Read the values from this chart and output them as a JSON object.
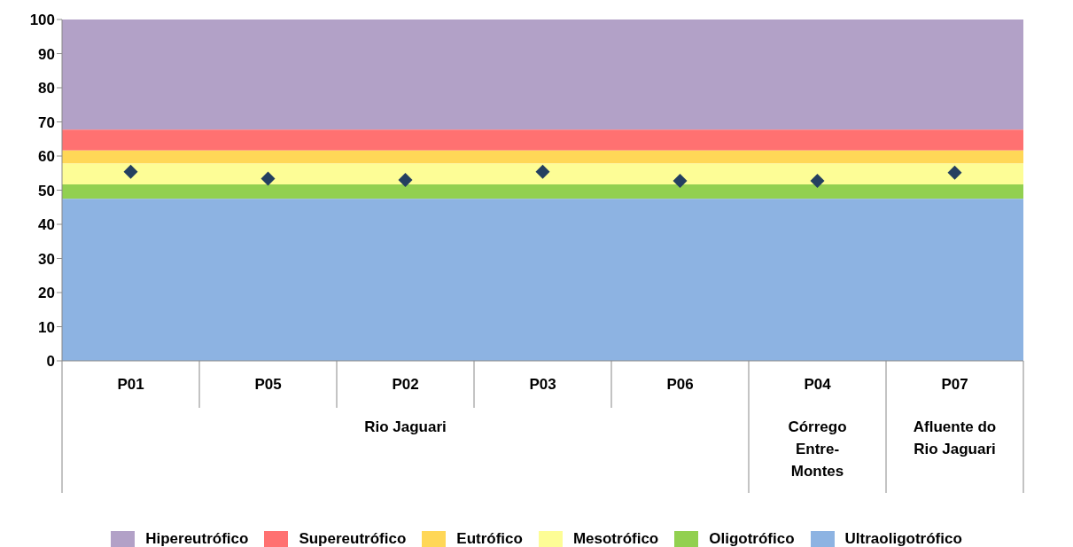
{
  "chart_data": {
    "type": "scatter",
    "categories": [
      "P01",
      "P05",
      "P02",
      "P03",
      "P06",
      "P04",
      "P07"
    ],
    "series": [
      {
        "color": "#243f60",
        "values": [
          55.4,
          53.4,
          53.0,
          55.4,
          52.7,
          52.7,
          55.1
        ]
      }
    ],
    "marker": "diamond",
    "ylim": [
      0,
      100
    ],
    "yticks": [
      0,
      10,
      20,
      30,
      40,
      50,
      60,
      70,
      80,
      90,
      100
    ],
    "legend": "bottom",
    "bands": [
      {
        "axis": "y",
        "from": 67.7,
        "to": 100,
        "label": "Hipereutrófico",
        "color": "#b2a1c7"
      },
      {
        "axis": "y",
        "from": 61.6,
        "to": 67.7,
        "label": "Supereutrófico",
        "color": "#ff7171"
      },
      {
        "axis": "y",
        "from": 57.8,
        "to": 61.6,
        "label": "Eutrófico",
        "color": "#ffd757"
      },
      {
        "axis": "y",
        "from": 51.7,
        "to": 57.8,
        "label": "Mesotrófico",
        "color": "#fdfd96"
      },
      {
        "axis": "y",
        "from": 47.5,
        "to": 51.7,
        "label": "Oligotrófico",
        "color": "#92d050"
      },
      {
        "axis": "y",
        "from": 0,
        "to": 47.5,
        "label": "Ultraoligotrófico",
        "color": "#8db3e2"
      }
    ],
    "annotations": [
      "Rio Jaguari",
      "Córrego Entre-Montes",
      "Afluente do Rio Jaguari"
    ]
  }
}
